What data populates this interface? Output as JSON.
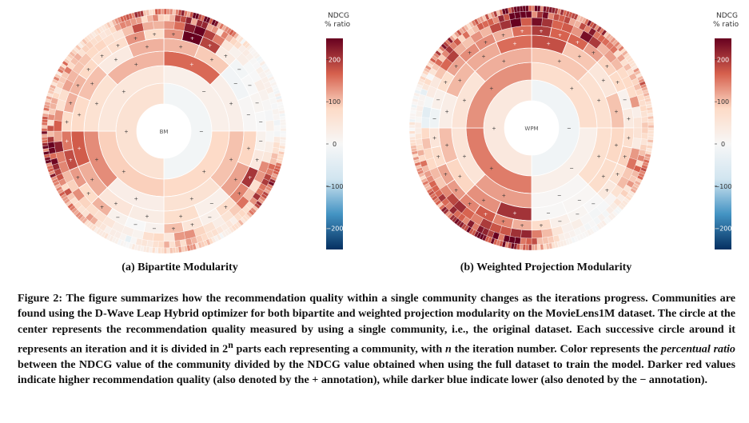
{
  "panels": [
    {
      "id": "a",
      "center_label": "BM",
      "sub_caption": "(a) Bipartite Modularity",
      "colorbar": {
        "title_line1": "NDCG",
        "title_line2": "% ratio",
        "ticks": [
          "200",
          "100",
          "0",
          "−100",
          "−200"
        ],
        "range": [
          -250,
          250
        ]
      }
    },
    {
      "id": "b",
      "center_label": "WPM",
      "sub_caption": "(b) Weighted Projection Modularity",
      "colorbar": {
        "title_line1": "NDCG",
        "title_line2": "% ratio",
        "ticks": [
          "200",
          "100",
          "0",
          "−100",
          "−200"
        ],
        "range": [
          -250,
          250
        ]
      }
    }
  ],
  "caption": {
    "p1": "Figure 2: The figure summarizes how the recommendation quality within a single community changes as the iterations progress. Communities are found using the D-Wave Leap Hybrid optimizer for both bipartite and weighted projection modularity on the MovieLens1M dataset. The circle at the center represents the recommendation quality measured by using a single community, i.e., the original dataset. Each successive circle around it represents an iteration and it is divided in 2",
    "sup": "n",
    "p2": " parts each representing a community, with ",
    "n": "n",
    "p3": " the iteration number. Color represents the ",
    "em": "percentual ratio",
    "p4": " between the NDCG value of the community divided by the NDCG value obtained when using the full dataset to train the model. Darker red values indicate higher recommendation quality (also denoted by the + annotation), while darker blue indicate lower (also denoted by the − annotation)."
  },
  "colors": {
    "max_red": "#67001f",
    "mid_red": "#d6604d",
    "light_red": "#fddbc7",
    "neutral": "#f7f7f7",
    "light_blue": "#d1e5f0",
    "mid_blue": "#4393c3",
    "max_blue": "#053061"
  }
}
